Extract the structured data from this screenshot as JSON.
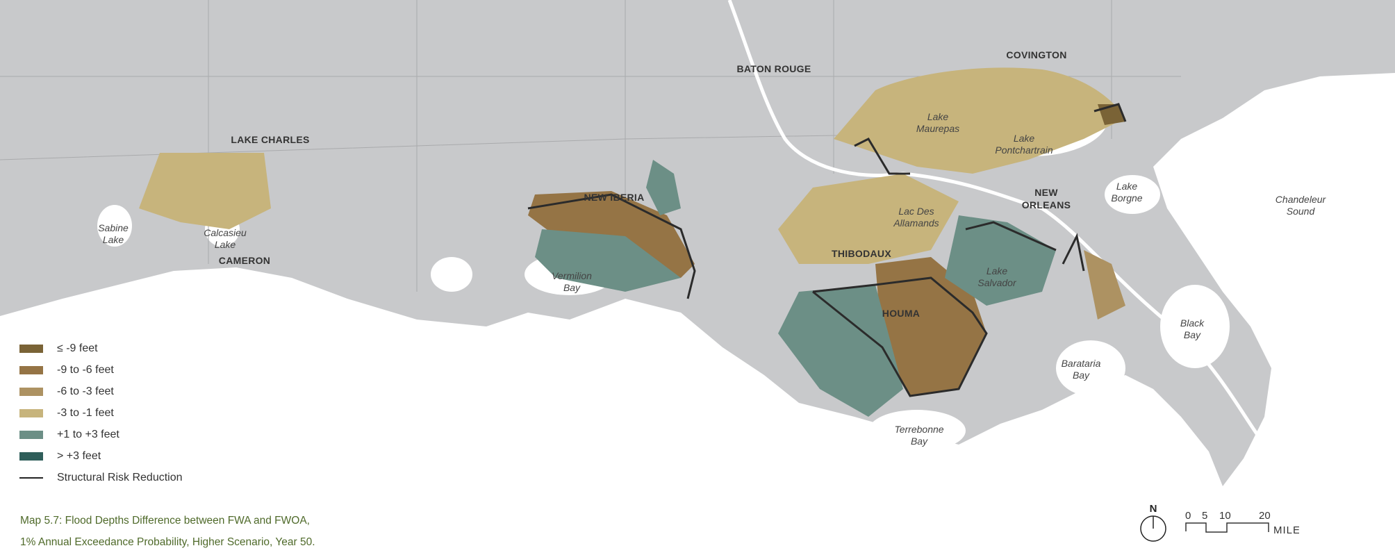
{
  "map": {
    "cities": [
      {
        "name": "BATON ROUGE"
      },
      {
        "name": "COVINGTON"
      },
      {
        "name": "LAKE CHARLES"
      },
      {
        "name": "NEW IBERIA"
      },
      {
        "name": "THIBODAUX"
      },
      {
        "name": "HOUMA"
      },
      {
        "name": "NEW\nORLEANS"
      },
      {
        "name": "CAMERON"
      }
    ],
    "water_bodies": [
      {
        "name": "Sabine\nLake"
      },
      {
        "name": "Calcasieu\nLake"
      },
      {
        "name": "Vermilion\nBay"
      },
      {
        "name": "Lake\nMaurepas"
      },
      {
        "name": "Lake\nPontchartrain"
      },
      {
        "name": "Lac Des\nAllamands"
      },
      {
        "name": "Lake\nSalvador"
      },
      {
        "name": "Lake\nBorgne"
      },
      {
        "name": "Chandeleur\nSound"
      },
      {
        "name": "Black\nBay"
      },
      {
        "name": "Barataria\nBay"
      },
      {
        "name": "Terrebonne\nBay"
      }
    ],
    "colors": {
      "land": "#c8c9cb",
      "water": "#ffffff",
      "road": "#a9aaac",
      "levee": "#2b2b2b"
    }
  },
  "legend": {
    "items": [
      {
        "label": "≤ -9 feet",
        "color": "#7a6336"
      },
      {
        "label": "-9 to -6 feet",
        "color": "#957445"
      },
      {
        "label": "-6 to -3 feet",
        "color": "#ad9262"
      },
      {
        "label": "-3 to -1 feet",
        "color": "#c7b47c"
      },
      {
        "label": "+1 to +3 feet",
        "color": "#6c8f86"
      },
      {
        "label": "> +3 feet",
        "color": "#2f5e5a"
      }
    ],
    "line_item": {
      "label": "Structural Risk Reduction"
    }
  },
  "caption": {
    "line1": "Map 5.7: Flood Depths Difference between FWA and FWOA,",
    "line2": "1% Annual Exceedance Probability, Higher Scenario, Year 50."
  },
  "compass": {
    "label": "N"
  },
  "scale_bar": {
    "ticks": [
      "0",
      "5",
      "10",
      "20"
    ],
    "unit": "MILES"
  }
}
